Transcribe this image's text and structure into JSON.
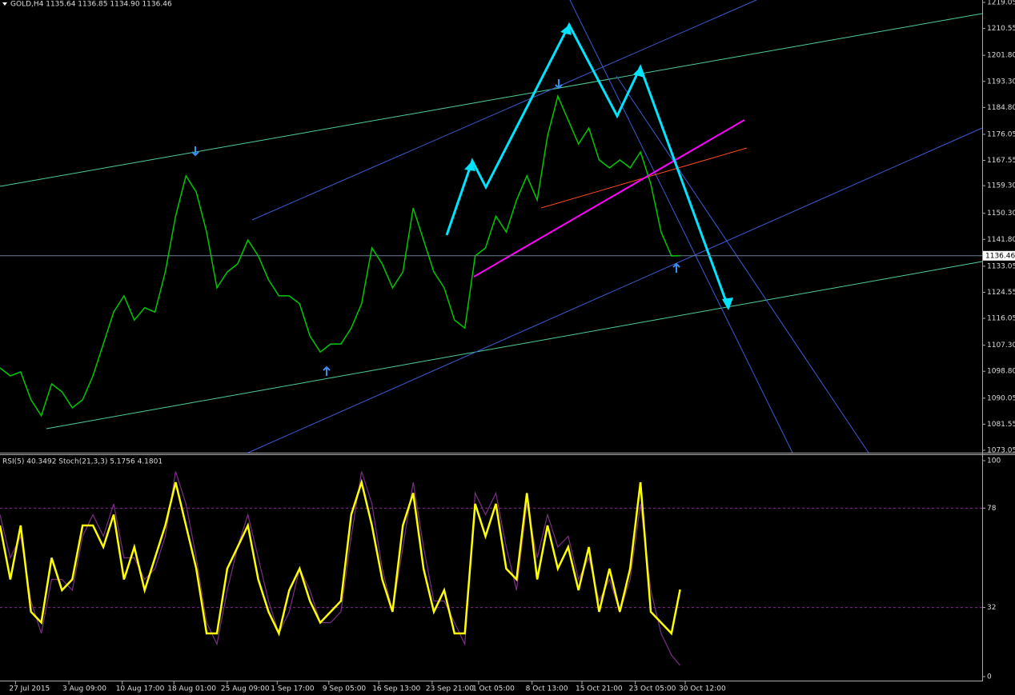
{
  "chart_data": [
    {
      "type": "line",
      "title": "GOLD,H4 1135.64 1136.85 1134.90 1136.46",
      "x": [
        0,
        6,
        12,
        18,
        24,
        30,
        36,
        42,
        48,
        54,
        60,
        66,
        72,
        78,
        84,
        90,
        96,
        102,
        108,
        114,
        120,
        126,
        132,
        138,
        144,
        150,
        156,
        162,
        168,
        174,
        180,
        186,
        192,
        198,
        204,
        210,
        216,
        222,
        228,
        234,
        240,
        246,
        252,
        258,
        264,
        270,
        276,
        282,
        288,
        294,
        300,
        306,
        312,
        318,
        324,
        330,
        336,
        342,
        348,
        354,
        360,
        366,
        372,
        378,
        384,
        390,
        395
      ],
      "values": [
        1099.9,
        1097.3,
        1098.6,
        1089.5,
        1084.3,
        1094.7,
        1092.1,
        1086.9,
        1089.5,
        1097.3,
        1107.7,
        1118.1,
        1123.4,
        1115.5,
        1119.5,
        1118.1,
        1131.2,
        1149.4,
        1162.5,
        1157.2,
        1144.2,
        1126.0,
        1131.2,
        1133.8,
        1141.6,
        1136.4,
        1128.6,
        1123.4,
        1123.4,
        1120.8,
        1110.3,
        1105.1,
        1107.7,
        1107.7,
        1112.9,
        1120.8,
        1139.0,
        1133.8,
        1126.0,
        1131.2,
        1152.0,
        1141.6,
        1131.2,
        1126.0,
        1115.5,
        1112.9,
        1136.4,
        1139.0,
        1149.4,
        1144.2,
        1154.6,
        1162.5,
        1154.6,
        1175.5,
        1188.5,
        1180.7,
        1172.9,
        1178.1,
        1167.7,
        1165.1,
        1167.7,
        1165.1,
        1170.3,
        1159.9,
        1144.2,
        1136.4,
        1136.46
      ],
      "color": "#00c800",
      "last_price": 1136.46,
      "xlim": [
        0,
        570
      ],
      "ylim": [
        1073.05,
        1219.05
      ],
      "yticks": [
        1073.05,
        1081.55,
        {
          "value": 1090.05,
          "label": "1090.05"
        },
        {
          "value": 1098.8,
          "label": "1098.80"
        },
        {
          "value": 1107.3,
          "label": "1107.30"
        },
        1116.05,
        1124.55,
        1133.05,
        {
          "value": 1141.8,
          "label": "1141.80"
        },
        {
          "value": 1150.3,
          "label": "1150.30"
        },
        {
          "value": 1159.3,
          "label": "1159.30"
        },
        1167.55,
        1176.05,
        {
          "value": 1184.8,
          "label": "1184.80"
        },
        {
          "value": 1193.3,
          "label": "1193.30"
        },
        {
          "value": 1201.8,
          "label": "1201.80"
        },
        1210.55,
        1219.05
      ]
    },
    {
      "type": "line",
      "title": "RSI(5) 40.3492 Stoch(21,3,3) 5.1756 4.1801",
      "x": [
        0,
        6,
        12,
        18,
        24,
        30,
        36,
        42,
        48,
        54,
        60,
        66,
        72,
        78,
        84,
        90,
        96,
        102,
        108,
        114,
        120,
        126,
        132,
        138,
        144,
        150,
        156,
        162,
        168,
        174,
        180,
        186,
        192,
        198,
        204,
        210,
        216,
        222,
        228,
        234,
        240,
        246,
        252,
        258,
        264,
        270,
        276,
        282,
        288,
        294,
        300,
        306,
        312,
        318,
        324,
        330,
        336,
        342,
        348,
        354,
        360,
        366,
        372,
        378,
        384,
        390,
        395
      ],
      "series": [
        {
          "color": "#ffff00",
          "values": [
            70,
            45,
            70,
            30,
            25,
            55,
            40,
            45,
            70,
            70,
            60,
            75,
            45,
            60,
            40,
            55,
            70,
            90,
            70,
            50,
            20,
            20,
            50,
            60,
            70,
            45,
            30,
            20,
            40,
            50,
            35,
            25,
            30,
            35,
            75,
            90,
            70,
            45,
            30,
            70,
            85,
            50,
            30,
            40,
            20,
            20,
            80,
            65,
            80,
            50,
            45,
            85,
            45,
            70,
            50,
            60,
            40,
            60,
            30,
            50,
            30,
            50,
            90,
            30,
            25,
            20,
            40.3492
          ]
        },
        {
          "color": "#7b2f86",
          "values": [
            75,
            55,
            65,
            35,
            20,
            45,
            45,
            40,
            65,
            75,
            65,
            80,
            55,
            55,
            45,
            50,
            65,
            95,
            80,
            55,
            25,
            15,
            40,
            60,
            75,
            55,
            35,
            20,
            30,
            50,
            40,
            25,
            25,
            30,
            65,
            95,
            80,
            50,
            30,
            60,
            90,
            60,
            35,
            35,
            25,
            15,
            85,
            75,
            85,
            60,
            40,
            80,
            55,
            75,
            60,
            65,
            45,
            55,
            35,
            45,
            30,
            45,
            80,
            40,
            20,
            10,
            5.1756
          ]
        }
      ],
      "xlim": [
        0,
        570
      ],
      "ylim": [
        0,
        100
      ],
      "yticks": [
        0,
        32,
        78,
        100
      ],
      "levels": [
        32,
        78
      ],
      "xticks": [
        {
          "value": 9,
          "label": "27 Jul 2015"
        },
        {
          "value": 40,
          "label": "3 Aug 09:00"
        },
        {
          "value": 71,
          "label": "10 Aug 17:00"
        },
        {
          "value": 101,
          "label": "18 Aug 01:00"
        },
        {
          "value": 132,
          "label": "25 Aug 09:00"
        },
        {
          "value": 161,
          "label": "1 Sep 17:00"
        },
        {
          "value": 191,
          "label": "9 Sep 05:00"
        },
        {
          "value": 220,
          "label": "16 Sep 13:00"
        },
        {
          "value": 251,
          "label": "23 Sep 21:00"
        },
        {
          "value": 278,
          "label": "1 Oct 05:00"
        },
        {
          "value": 309,
          "label": "8 Oct 13:00"
        },
        {
          "value": 338,
          "label": "15 Oct 21:00"
        },
        {
          "value": 369,
          "label": "23 Oct 05:00"
        },
        {
          "value": 398,
          "label": "30 Oct 12:00"
        }
      ]
    }
  ]
}
